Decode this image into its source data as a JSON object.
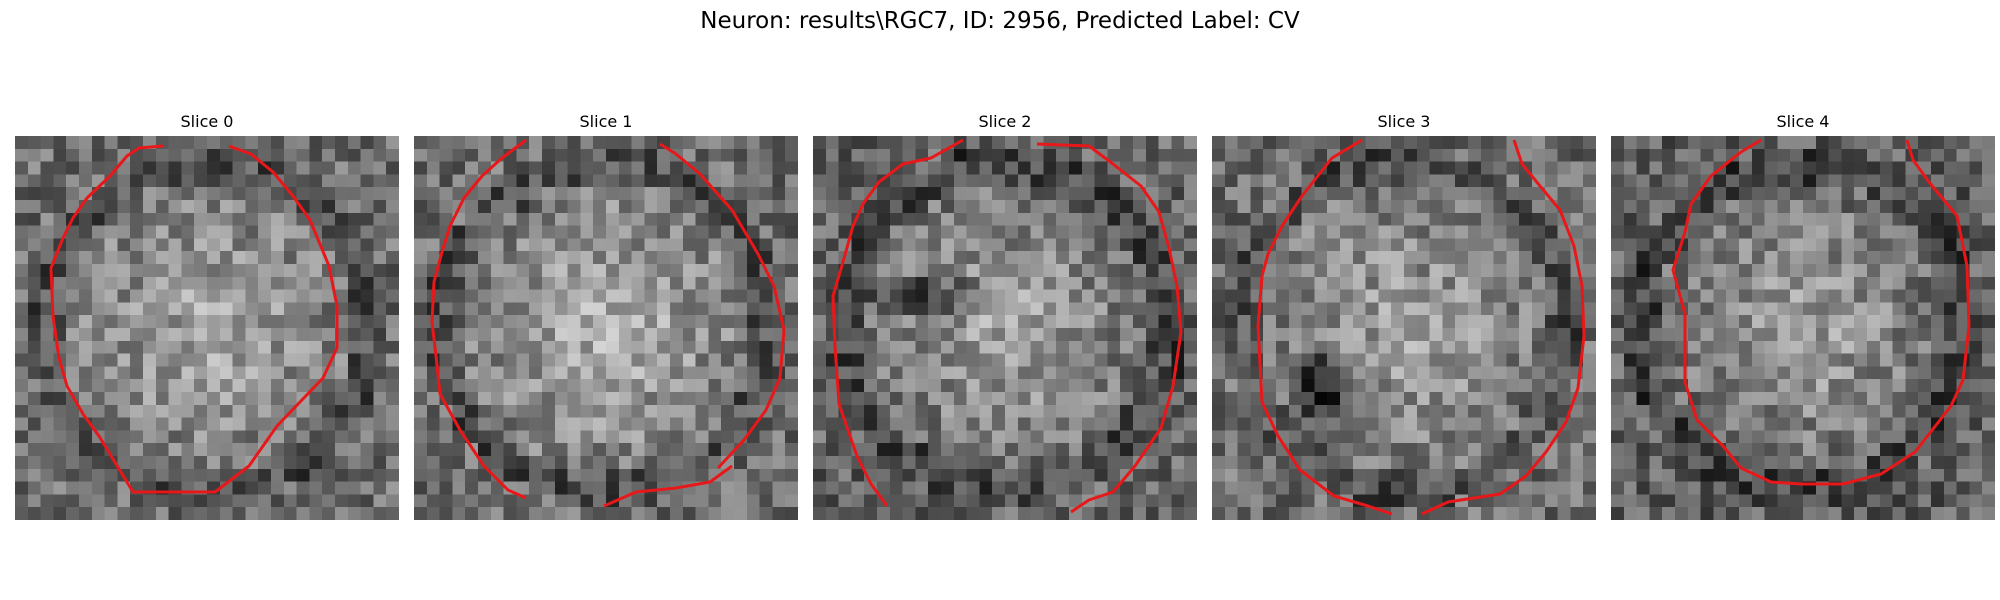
{
  "title": "Neuron: results\\RGC7, ID: 2956, Predicted Label: CV",
  "colormap": "gray",
  "outline_color": "#e8181a",
  "panels": [
    {
      "label": "Slice 0"
    },
    {
      "label": "Slice 1"
    },
    {
      "label": "Slice 2"
    },
    {
      "label": "Slice 3"
    },
    {
      "label": "Slice 4"
    }
  ]
}
